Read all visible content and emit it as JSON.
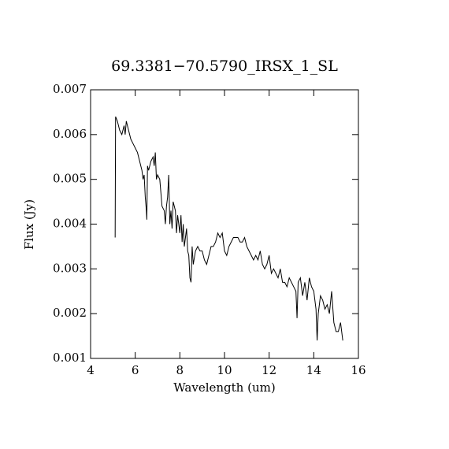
{
  "chart_data": {
    "type": "line",
    "title": "69.3381−70.5790_IRSX_1_SL",
    "x_label": "Wavelength (um)",
    "y_label": "Flux (Jy)",
    "xlim": [
      4,
      16
    ],
    "xticks": [
      4,
      6,
      8,
      10,
      12,
      14,
      16
    ],
    "ylim": [
      0.001,
      0.007
    ],
    "yticks": [
      0.001,
      0.002,
      0.003,
      0.004,
      0.005,
      0.006,
      0.007
    ],
    "series": [
      {
        "color": "#000000",
        "x": [
          5.1,
          5.12,
          5.2,
          5.3,
          5.4,
          5.5,
          5.55,
          5.6,
          5.7,
          5.8,
          5.9,
          6.0,
          6.1,
          6.2,
          6.3,
          6.35,
          6.4,
          6.45,
          6.5,
          6.52,
          6.55,
          6.6,
          6.7,
          6.8,
          6.85,
          6.9,
          6.95,
          7.0,
          7.1,
          7.2,
          7.3,
          7.35,
          7.4,
          7.45,
          7.5,
          7.55,
          7.6,
          7.65,
          7.7,
          7.8,
          7.85,
          7.9,
          8.0,
          8.05,
          8.1,
          8.15,
          8.2,
          8.3,
          8.35,
          8.4,
          8.45,
          8.5,
          8.55,
          8.6,
          8.7,
          8.8,
          8.9,
          9.0,
          9.1,
          9.2,
          9.3,
          9.4,
          9.5,
          9.6,
          9.7,
          9.8,
          9.9,
          10.0,
          10.1,
          10.2,
          10.3,
          10.4,
          10.5,
          10.6,
          10.7,
          10.8,
          10.9,
          11.0,
          11.1,
          11.2,
          11.3,
          11.4,
          11.5,
          11.6,
          11.7,
          11.8,
          11.9,
          12.0,
          12.1,
          12.2,
          12.3,
          12.4,
          12.5,
          12.6,
          12.7,
          12.8,
          12.9,
          13.0,
          13.1,
          13.2,
          13.25,
          13.3,
          13.4,
          13.5,
          13.6,
          13.7,
          13.8,
          13.9,
          14.0,
          14.1,
          14.15,
          14.2,
          14.3,
          14.4,
          14.5,
          14.6,
          14.7,
          14.8,
          14.9,
          15.0,
          15.1,
          15.2,
          15.25,
          15.3
        ],
        "values": [
          0.0037,
          0.0064,
          0.0063,
          0.0061,
          0.006,
          0.0062,
          0.006,
          0.0063,
          0.0061,
          0.0059,
          0.0058,
          0.0057,
          0.0056,
          0.0054,
          0.0052,
          0.005,
          0.0051,
          0.0046,
          0.0043,
          0.0041,
          0.0053,
          0.0052,
          0.0054,
          0.0055,
          0.0053,
          0.0056,
          0.005,
          0.0051,
          0.005,
          0.0044,
          0.0043,
          0.004,
          0.0044,
          0.0046,
          0.0051,
          0.004,
          0.0043,
          0.0039,
          0.0045,
          0.0043,
          0.0038,
          0.0042,
          0.0038,
          0.0042,
          0.0036,
          0.004,
          0.0035,
          0.0039,
          0.0034,
          0.0033,
          0.0028,
          0.0027,
          0.0035,
          0.0031,
          0.0034,
          0.0035,
          0.0034,
          0.0034,
          0.0032,
          0.0031,
          0.0033,
          0.0035,
          0.0035,
          0.0036,
          0.0038,
          0.0037,
          0.0038,
          0.0034,
          0.0033,
          0.0035,
          0.0036,
          0.0037,
          0.0037,
          0.0037,
          0.0036,
          0.0036,
          0.0037,
          0.0035,
          0.0034,
          0.0033,
          0.0032,
          0.0033,
          0.0032,
          0.0034,
          0.0031,
          0.003,
          0.0031,
          0.0033,
          0.0029,
          0.003,
          0.0029,
          0.0028,
          0.003,
          0.0027,
          0.0027,
          0.0026,
          0.0028,
          0.0027,
          0.0026,
          0.0025,
          0.0019,
          0.0027,
          0.0028,
          0.0024,
          0.0027,
          0.0023,
          0.0028,
          0.0026,
          0.0025,
          0.0021,
          0.0014,
          0.002,
          0.0024,
          0.0023,
          0.0021,
          0.0022,
          0.002,
          0.0025,
          0.0018,
          0.0016,
          0.0016,
          0.0018,
          0.0016,
          0.0014
        ]
      }
    ]
  }
}
